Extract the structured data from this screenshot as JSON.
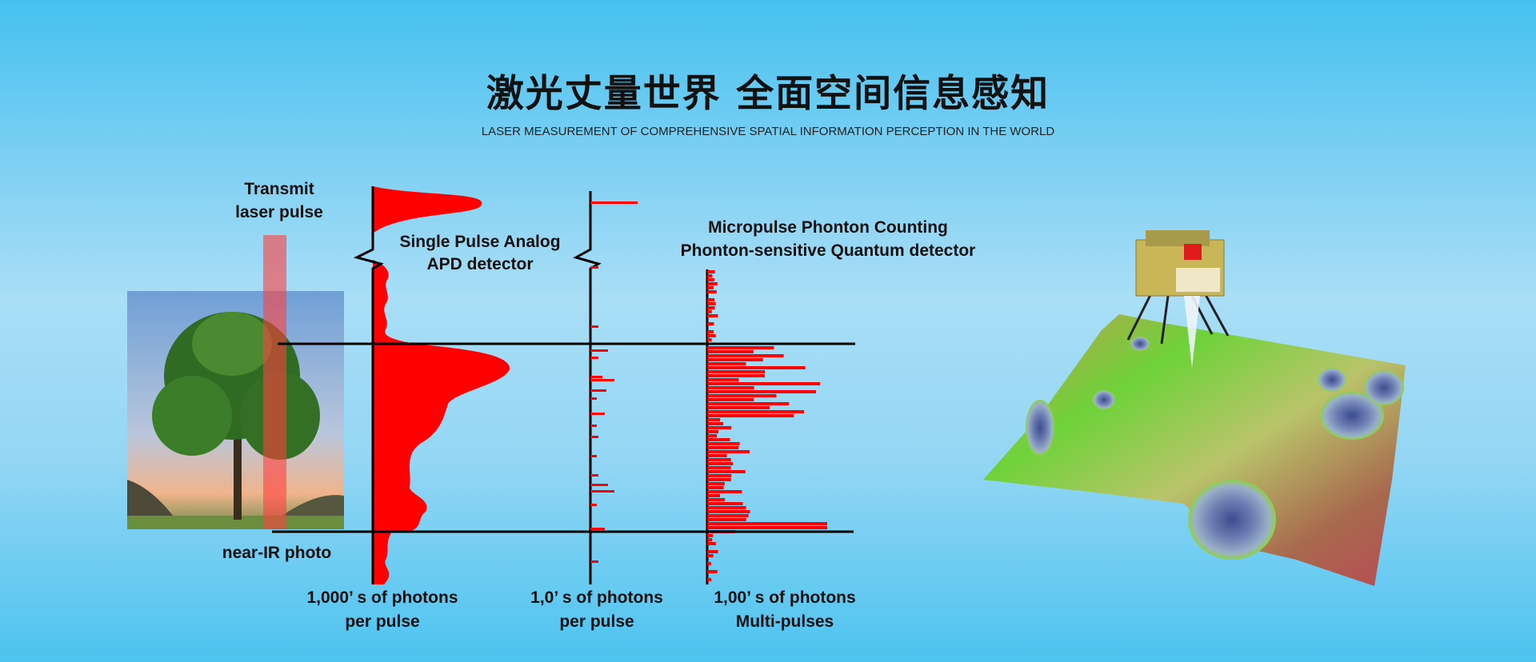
{
  "header": {
    "title": "激光丈量世界 全面空间信息感知",
    "subtitle": "LASER MEASUREMENT OF COMPREHENSIVE SPATIAL INFORMATION PERCEPTION IN THE WORLD"
  },
  "diagram": {
    "transmit_label_1": "Transmit",
    "transmit_label_2": "laser pulse",
    "photo_label": "near-IR photo",
    "analog_label_1": "Single Pulse Analog",
    "analog_label_2": "APD detector",
    "counting_label_1": "Micropulse Phonton Counting",
    "counting_label_2": "Phonton-sensitive Quantum detector",
    "axis1_label_1": "1,000’ s of photons",
    "axis1_label_2": "per pulse",
    "axis2_label_1": "1,0’ s of photons",
    "axis2_label_2": "per pulse",
    "axis3_label_1": "1,00’ s of photons",
    "axis3_label_2": "Multi-pulses"
  },
  "colors": {
    "signal": "#ff0000",
    "axis": "#000000",
    "beam": "#ff5a5a"
  }
}
